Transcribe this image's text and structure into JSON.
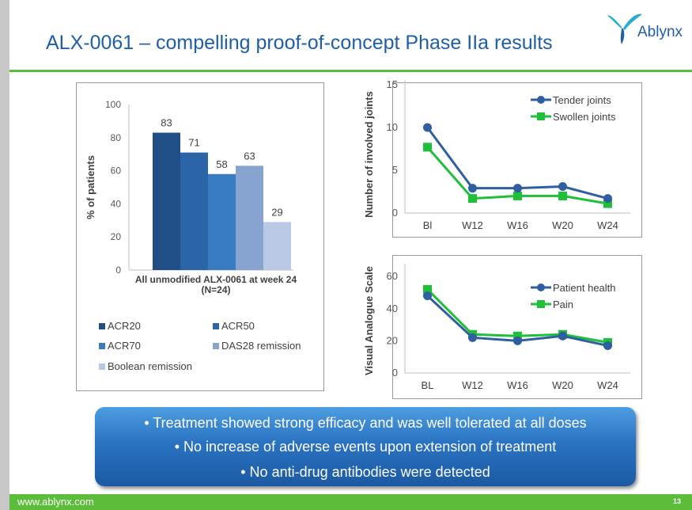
{
  "slide": {
    "title": "ALX-0061 – compelling proof-of-concept Phase IIa results",
    "logo_text": "Ablynx",
    "footer_url": "www.ablynx.com",
    "page_number": "13",
    "callout": [
      "• Treatment showed strong efficacy and was well tolerated at all doses",
      "• No increase of adverse events upon extension of treatment",
      "• No anti-drug antibodies were detected"
    ]
  },
  "colors": {
    "title": "#1f5fa6",
    "green": "#5bbd3a",
    "blue_line": "#2f5fa0",
    "green_line": "#1fbf3a"
  },
  "chart_data": [
    {
      "type": "bar",
      "title": "",
      "xlabel": "All unmodified ALX-0061 at week 24 (N=24)",
      "xlabel_lines": [
        "All unmodified ALX-0061 at week 24",
        "(N=24)"
      ],
      "ylabel": "% of patients",
      "ylim": [
        0,
        100
      ],
      "yticks": [
        "0",
        "20",
        "40",
        "60",
        "80",
        "100"
      ],
      "grid": false,
      "legend_position": "bottom",
      "series": [
        {
          "name": "ACR20",
          "values": [
            83
          ],
          "color": "#1f4f86"
        },
        {
          "name": "ACR50",
          "values": [
            71
          ],
          "color": "#2a65a8"
        },
        {
          "name": "ACR70",
          "values": [
            58
          ],
          "color": "#3a7cc2"
        },
        {
          "name": "DAS28 remission",
          "values": [
            63
          ],
          "color": "#87a3d0"
        },
        {
          "name": "Boolean remission",
          "values": [
            29
          ],
          "color": "#b9c9e3"
        }
      ]
    },
    {
      "type": "line",
      "ylabel": "Number of involved joints",
      "categories": [
        "Bl",
        "W12",
        "W16",
        "W20",
        "W24"
      ],
      "ylim": [
        0,
        15
      ],
      "yticks": [
        "0",
        "5",
        "10",
        "15"
      ],
      "grid": false,
      "legend_position": "top-right",
      "series": [
        {
          "name": "Tender joints",
          "values": [
            10.0,
            2.9,
            2.9,
            3.1,
            1.7
          ],
          "color": "#2f5fa0",
          "marker": "circle"
        },
        {
          "name": "Swollen joints",
          "values": [
            7.7,
            1.7,
            2.0,
            2.0,
            1.1
          ],
          "color": "#1fbf3a",
          "marker": "square"
        }
      ]
    },
    {
      "type": "line",
      "ylabel": "Visual Analogue Scale",
      "categories": [
        "BL",
        "W12",
        "W16",
        "W20",
        "W24"
      ],
      "ylim": [
        0,
        65
      ],
      "yticks": [
        "0",
        "20",
        "40",
        "60"
      ],
      "grid": false,
      "legend_position": "top-right",
      "series": [
        {
          "name": "Patient health",
          "values": [
            48,
            22,
            20,
            23,
            17
          ],
          "color": "#2f5fa0",
          "marker": "circle"
        },
        {
          "name": "Pain",
          "values": [
            52,
            24,
            23,
            24,
            19
          ],
          "color": "#1fbf3a",
          "marker": "square"
        }
      ]
    }
  ]
}
